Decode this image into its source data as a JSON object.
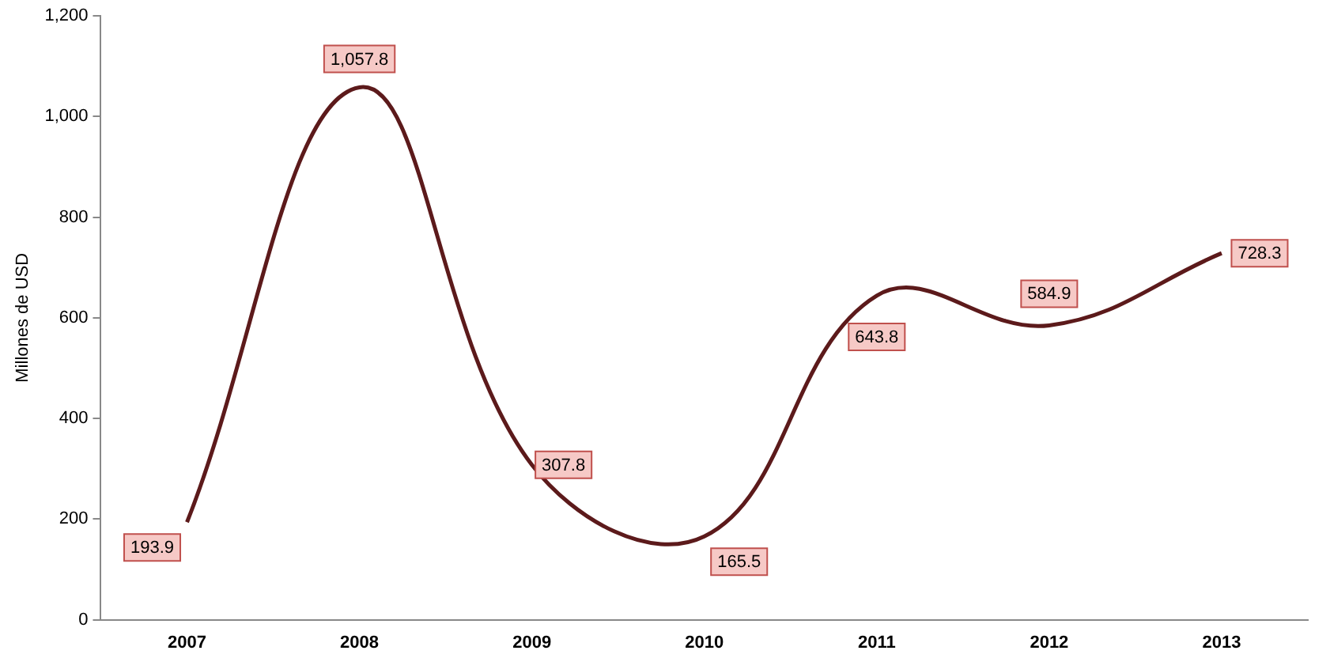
{
  "chart_data": {
    "type": "line",
    "ylabel": "Millones de USD",
    "categories": [
      "2007",
      "2008",
      "2009",
      "2010",
      "2011",
      "2012",
      "2013"
    ],
    "series": [
      {
        "color": "#5c1a1b",
        "values": [
          193.9,
          1057.8,
          307.8,
          165.5,
          643.8,
          584.9,
          728.3
        ],
        "value_labels": [
          "193.9",
          "1,057.8",
          "307.8",
          "165.5",
          "643.8",
          "584.9",
          "728.3"
        ]
      }
    ],
    "ylim": [
      0,
      1200
    ],
    "yticks": [
      0,
      200,
      400,
      600,
      800,
      {
        "value": 1000,
        "label": "1,000"
      },
      {
        "value": 1200,
        "label": "1,200"
      }
    ],
    "grid": false,
    "legend": false,
    "marker": "none",
    "line_style": "solid"
  }
}
